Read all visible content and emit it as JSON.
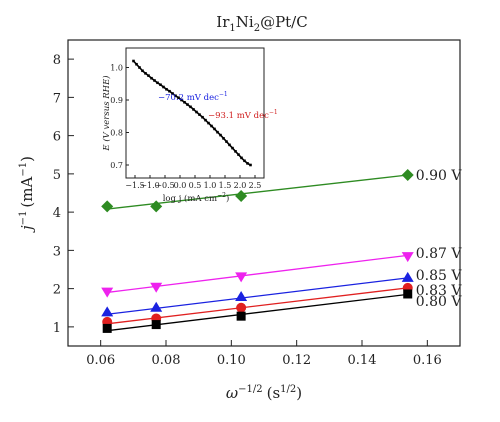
{
  "chart_data": [
    {
      "type": "line",
      "title_main": "Ir",
      "title_sub1": "1",
      "title_mid": "Ni",
      "title_sub2": "2",
      "title_rest": "@Pt/C",
      "xlabel": "ω",
      "xlabel_sup": "−1/2",
      "xlabel_unit": "(s",
      "xlabel_unit_sup": "1/2",
      "xlabel_close": ")",
      "ylabel": "j",
      "ylabel_sup": "−1",
      "ylabel_unit": "(mA",
      "ylabel_unit_sup": "−1",
      "ylabel_close": ")",
      "xlim": [
        0.05,
        0.17
      ],
      "ylim": [
        0.5,
        8.5
      ],
      "xticks": [
        "0.06",
        "0.08",
        "0.10",
        "0.12",
        "0.14",
        "0.16"
      ],
      "yticks": [
        "1",
        "2",
        "3",
        "4",
        "5",
        "6",
        "7",
        "8"
      ],
      "x": [
        0.062,
        0.077,
        0.103,
        0.154
      ],
      "series": [
        {
          "name": "0.90 V",
          "color": "#2e8b22",
          "marker": "diamond",
          "values": [
            4.15,
            4.15,
            4.42,
            4.97
          ],
          "fit": [
            4.08,
            4.97
          ]
        },
        {
          "name": "0.87 V",
          "color": "#ee22ee",
          "marker": "triangle-down",
          "values": [
            1.92,
            2.05,
            2.32,
            2.85
          ],
          "fit": [
            1.9,
            2.87
          ]
        },
        {
          "name": "0.85 V",
          "color": "#1a22e0",
          "marker": "triangle-up",
          "values": [
            1.38,
            1.5,
            1.78,
            2.28
          ],
          "fit": [
            1.33,
            2.28
          ]
        },
        {
          "name": "0.83 V",
          "color": "#e02020",
          "marker": "circle",
          "values": [
            1.13,
            1.22,
            1.5,
            2.02
          ],
          "fit": [
            1.08,
            2.02
          ]
        },
        {
          "name": "0.80 V",
          "color": "#000000",
          "marker": "square",
          "values": [
            0.96,
            1.06,
            1.28,
            1.86
          ],
          "fit": [
            0.9,
            1.85
          ]
        }
      ]
    },
    {
      "type": "line",
      "xlabel": "log j (mA cm",
      "xlabel_sup": "−2",
      "xlabel_close": ")",
      "ylabel": "E (V versus RHE)",
      "xlim": [
        -1.8,
        2.8
      ],
      "ylim": [
        0.66,
        1.06
      ],
      "xticks": [
        "−1.5",
        "−1.0",
        "−0.5",
        "0.0",
        "0.5",
        "1.0",
        "1.5",
        "2.0",
        "2.5"
      ],
      "yticks": [
        "0.7",
        "0.8",
        "0.9",
        "1.0"
      ],
      "annotations": [
        {
          "text": "−70.2 mV dec",
          "sup": "−1",
          "color": "#1a22e0"
        },
        {
          "text": "−93.1 mV dec",
          "sup": "−1",
          "color": "#d02020"
        }
      ],
      "series": [
        {
          "color": "#000000",
          "x": [
            -1.55,
            -1.45,
            -1.35,
            -1.25,
            -1.15,
            -1.05,
            -0.95,
            -0.85,
            -0.75,
            -0.65,
            -0.55,
            -0.45,
            -0.35,
            -0.25,
            -0.15,
            -0.05,
            0.05,
            0.15,
            0.25,
            0.35,
            0.45,
            0.55,
            0.65,
            0.75,
            0.85,
            0.95,
            1.05,
            1.15,
            1.25,
            1.35,
            1.45,
            1.55,
            1.65,
            1.75,
            1.85,
            1.95,
            2.05,
            2.15,
            2.25,
            2.35
          ],
          "y": [
            1.02,
            1.01,
            1.0,
            0.99,
            0.982,
            0.975,
            0.967,
            0.96,
            0.953,
            0.947,
            0.94,
            0.933,
            0.927,
            0.92,
            0.913,
            0.907,
            0.9,
            0.893,
            0.886,
            0.879,
            0.871,
            0.863,
            0.855,
            0.847,
            0.838,
            0.829,
            0.82,
            0.811,
            0.801,
            0.792,
            0.782,
            0.772,
            0.762,
            0.752,
            0.742,
            0.732,
            0.722,
            0.713,
            0.705,
            0.7
          ]
        }
      ]
    }
  ]
}
